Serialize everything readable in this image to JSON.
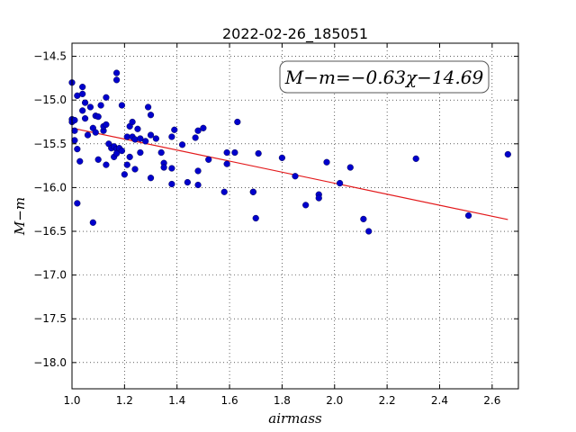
{
  "chart_data": {
    "type": "scatter",
    "title": "2022-02-26_185051",
    "xlabel": "airmass",
    "ylabel": "M−m",
    "xlim": [
      1.0,
      2.7
    ],
    "ylim": [
      -18.3,
      -14.35
    ],
    "y_inverted": true,
    "grid": true,
    "x_ticks": [
      1.0,
      1.2,
      1.4,
      1.6,
      1.8,
      2.0,
      2.2,
      2.4,
      2.6
    ],
    "x_tick_labels": [
      "1.0",
      "1.2",
      "1.4",
      "1.6",
      "1.8",
      "2.0",
      "2.2",
      "2.4",
      "2.6"
    ],
    "y_ticks": [
      -14.5,
      -15.0,
      -15.5,
      -16.0,
      -16.5,
      -17.0,
      -17.5,
      -18.0
    ],
    "y_tick_labels": [
      "−14.5",
      "−15.0",
      "−15.5",
      "−16.0",
      "−16.5",
      "−17.0",
      "−17.5",
      "−18.0"
    ],
    "annotation": "M−m=−0.63χ−14.69",
    "annotation_position": "top-right",
    "fit_line": {
      "slope": -0.63,
      "intercept": -14.69,
      "x_range": [
        1.0,
        2.66
      ],
      "color": "#e31a1c"
    },
    "marker_color": "#0000cc",
    "points": [
      [
        1.0,
        -14.8
      ],
      [
        1.0,
        -15.22
      ],
      [
        1.0,
        -15.25
      ],
      [
        1.01,
        -15.23
      ],
      [
        1.01,
        -15.35
      ],
      [
        1.01,
        -15.46
      ],
      [
        1.02,
        -15.56
      ],
      [
        1.02,
        -16.18
      ],
      [
        1.03,
        -15.7
      ],
      [
        1.02,
        -14.95
      ],
      [
        1.04,
        -14.85
      ],
      [
        1.04,
        -14.93
      ],
      [
        1.04,
        -15.12
      ],
      [
        1.05,
        -15.21
      ],
      [
        1.05,
        -15.03
      ],
      [
        1.06,
        -15.4
      ],
      [
        1.07,
        -15.08
      ],
      [
        1.08,
        -15.32
      ],
      [
        1.08,
        -16.4
      ],
      [
        1.09,
        -15.18
      ],
      [
        1.09,
        -15.37
      ],
      [
        1.1,
        -15.68
      ],
      [
        1.1,
        -15.19
      ],
      [
        1.11,
        -15.06
      ],
      [
        1.12,
        -15.35
      ],
      [
        1.12,
        -15.3
      ],
      [
        1.13,
        -15.74
      ],
      [
        1.13,
        -15.28
      ],
      [
        1.13,
        -14.97
      ],
      [
        1.14,
        -15.5
      ],
      [
        1.15,
        -15.55
      ],
      [
        1.16,
        -15.53
      ],
      [
        1.16,
        -15.65
      ],
      [
        1.17,
        -15.56
      ],
      [
        1.17,
        -14.69
      ],
      [
        1.17,
        -14.77
      ],
      [
        1.17,
        -15.61
      ],
      [
        1.18,
        -15.55
      ],
      [
        1.19,
        -15.06
      ],
      [
        1.19,
        -15.58
      ],
      [
        1.2,
        -15.85
      ],
      [
        1.21,
        -15.42
      ],
      [
        1.21,
        -15.74
      ],
      [
        1.22,
        -15.65
      ],
      [
        1.22,
        -15.3
      ],
      [
        1.23,
        -15.25
      ],
      [
        1.23,
        -15.42
      ],
      [
        1.24,
        -15.79
      ],
      [
        1.24,
        -15.45
      ],
      [
        1.25,
        -15.33
      ],
      [
        1.26,
        -15.6
      ],
      [
        1.26,
        -15.44
      ],
      [
        1.28,
        -15.47
      ],
      [
        1.29,
        -15.08
      ],
      [
        1.3,
        -15.17
      ],
      [
        1.3,
        -15.89
      ],
      [
        1.3,
        -15.4
      ],
      [
        1.32,
        -15.44
      ],
      [
        1.34,
        -15.6
      ],
      [
        1.35,
        -15.72
      ],
      [
        1.35,
        -15.77
      ],
      [
        1.38,
        -15.42
      ],
      [
        1.38,
        -15.96
      ],
      [
        1.38,
        -15.78
      ],
      [
        1.39,
        -15.34
      ],
      [
        1.42,
        -15.51
      ],
      [
        1.44,
        -15.94
      ],
      [
        1.47,
        -15.43
      ],
      [
        1.48,
        -15.35
      ],
      [
        1.48,
        -15.81
      ],
      [
        1.48,
        -15.97
      ],
      [
        1.5,
        -15.32
      ],
      [
        1.52,
        -15.68
      ],
      [
        1.58,
        -16.05
      ],
      [
        1.59,
        -15.73
      ],
      [
        1.59,
        -15.6
      ],
      [
        1.62,
        -15.6
      ],
      [
        1.63,
        -15.25
      ],
      [
        1.69,
        -16.05
      ],
      [
        1.69,
        -16.05
      ],
      [
        1.7,
        -16.35
      ],
      [
        1.71,
        -15.61
      ],
      [
        1.8,
        -15.66
      ],
      [
        1.85,
        -15.87
      ],
      [
        1.89,
        -16.2
      ],
      [
        1.94,
        -16.08
      ],
      [
        1.94,
        -16.12
      ],
      [
        1.97,
        -15.71
      ],
      [
        2.02,
        -15.95
      ],
      [
        2.06,
        -15.77
      ],
      [
        2.11,
        -16.36
      ],
      [
        2.13,
        -16.5
      ],
      [
        2.31,
        -15.67
      ],
      [
        2.51,
        -16.32
      ],
      [
        2.66,
        -15.62
      ]
    ]
  }
}
